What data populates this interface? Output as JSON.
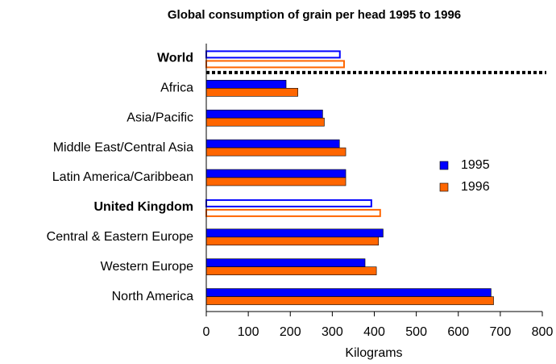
{
  "chart_data": {
    "type": "bar",
    "orientation": "horizontal",
    "title": "Global consumption of grain per head 1995 to 1996",
    "x_label": "Kilograms",
    "categories": [
      "World",
      "Africa",
      "Asia/Pacific",
      "Middle East/Central Asia",
      "Latin America/Caribbean",
      "United Kingdom",
      "Central & Eastern Europe",
      "Western Europe",
      "North America"
    ],
    "series": [
      {
        "name": "1995",
        "color": "#0000ff",
        "values": [
          318,
          190,
          277,
          317,
          332,
          393,
          421,
          378,
          678
        ]
      },
      {
        "name": "1996",
        "color": "#ff6600",
        "values": [
          328,
          218,
          281,
          332,
          332,
          414,
          410,
          405,
          684
        ]
      }
    ],
    "emphasized": [
      0,
      5
    ],
    "separator_after": 0,
    "xlim": [
      0,
      800
    ],
    "xticks": [
      0,
      100,
      200,
      300,
      400,
      500,
      600,
      700,
      800
    ],
    "legend": "right"
  }
}
